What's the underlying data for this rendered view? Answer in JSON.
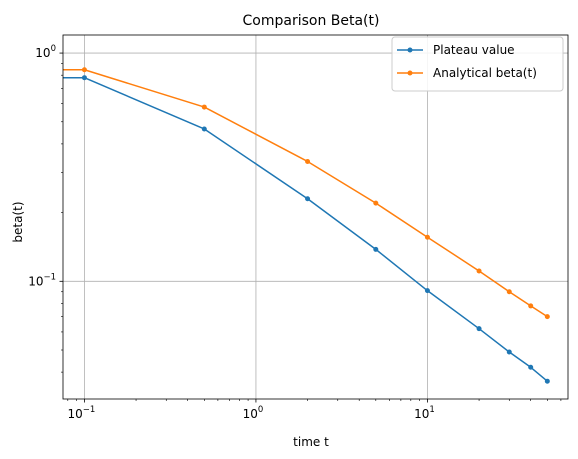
{
  "chart_data": {
    "type": "line",
    "title": "Comparison Beta(t)",
    "xlabel": "time t",
    "ylabel": "beta(t)",
    "xscale": "log",
    "yscale": "log",
    "xlim": [
      0.075,
      66
    ],
    "ylim": [
      0.0305,
      1.2
    ],
    "grid": true,
    "legend_position": "top-right",
    "x_ticks": [
      {
        "value": 0.1,
        "base": "10",
        "exp": "−1"
      },
      {
        "value": 1,
        "base": "10",
        "exp": "0"
      },
      {
        "value": 10,
        "base": "10",
        "exp": "1"
      }
    ],
    "y_ticks": [
      {
        "value": 0.1,
        "base": "10",
        "exp": "−1"
      },
      {
        "value": 1,
        "base": "10",
        "exp": "0"
      }
    ],
    "x": [
      0.1,
      0.5,
      2,
      5,
      10,
      20,
      30,
      40,
      50
    ],
    "series": [
      {
        "name": "Plateau value",
        "color": "#1f77b4",
        "x": [
          0.075,
          0.1,
          0.5,
          2,
          5,
          10,
          20,
          30,
          40,
          50
        ],
        "values": [
          0.78,
          0.78,
          0.465,
          0.23,
          0.138,
          0.091,
          0.062,
          0.049,
          0.042,
          0.0365
        ],
        "markers": [
          false,
          true,
          true,
          true,
          true,
          true,
          true,
          true,
          true,
          true
        ]
      },
      {
        "name": "Analytical beta(t)",
        "color": "#ff7f0e",
        "x": [
          0.075,
          0.1,
          0.5,
          2,
          5,
          10,
          20,
          30,
          40,
          50
        ],
        "values": [
          0.845,
          0.845,
          0.58,
          0.335,
          0.22,
          0.156,
          0.111,
          0.09,
          0.078,
          0.07
        ],
        "markers": [
          false,
          true,
          true,
          true,
          true,
          true,
          true,
          true,
          true,
          true
        ]
      }
    ]
  }
}
